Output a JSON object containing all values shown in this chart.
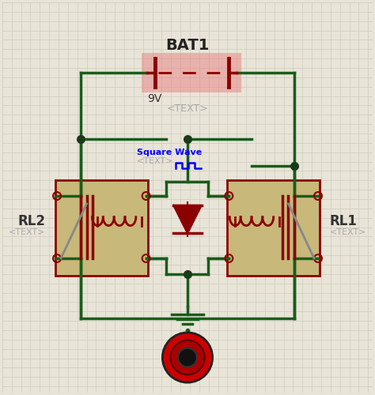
{
  "bg_color": "#e8e4d8",
  "grid_color": "#d0cbbf",
  "wire_color": "#1a5c1a",
  "component_color": "#8b0000",
  "node_color": "#1a3a1a",
  "title": "BAT1",
  "label_9v": "9V",
  "label_text": "<TEXT>",
  "label_rl2": "RL2",
  "label_rl1": "RL1",
  "label_sq": "Square Wave",
  "relay_box_color": "#c8b87a",
  "relay_box_edge": "#8b0000",
  "bat_highlight": "#e88080"
}
